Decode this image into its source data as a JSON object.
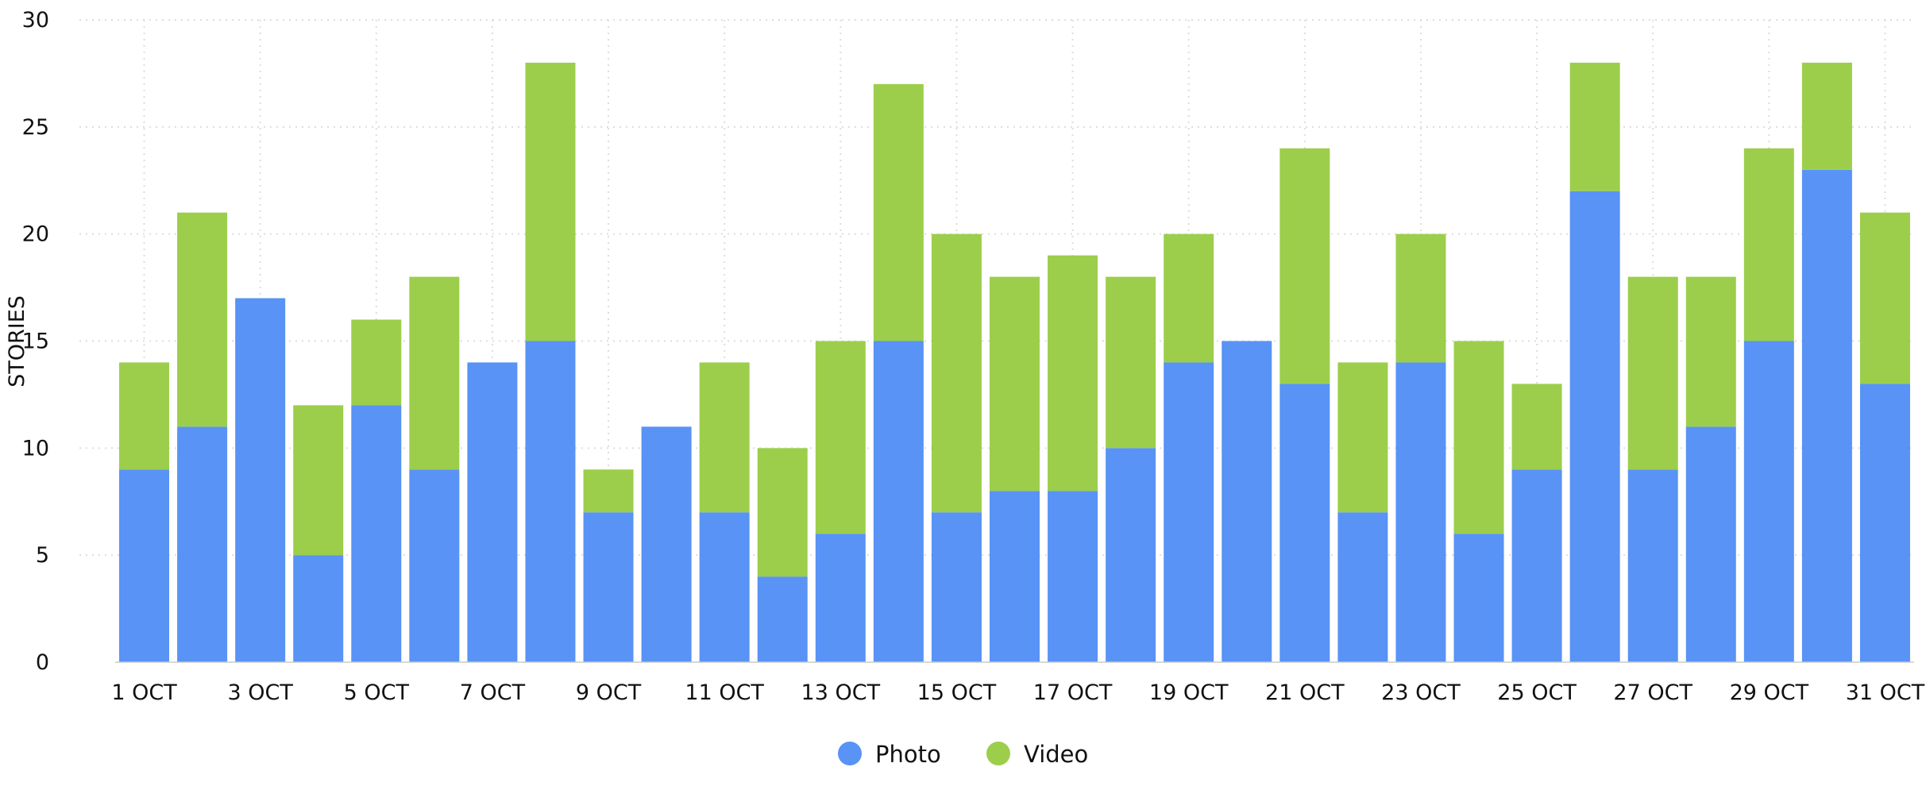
{
  "chart_data": {
    "type": "bar",
    "stacked": true,
    "title": "",
    "xlabel": "",
    "ylabel": "STORIES",
    "ylim": [
      0,
      30
    ],
    "yticks": [
      0,
      5,
      10,
      15,
      20,
      25,
      30
    ],
    "grid": true,
    "legend_position": "bottom",
    "categories": [
      "1 OCT",
      "2 OCT",
      "3 OCT",
      "4 OCT",
      "5 OCT",
      "6 OCT",
      "7 OCT",
      "8 OCT",
      "9 OCT",
      "10 OCT",
      "11 OCT",
      "12 OCT",
      "13 OCT",
      "14 OCT",
      "15 OCT",
      "16 OCT",
      "17 OCT",
      "18 OCT",
      "19 OCT",
      "20 OCT",
      "21 OCT",
      "22 OCT",
      "23 OCT",
      "24 OCT",
      "25 OCT",
      "26 OCT",
      "27 OCT",
      "28 OCT",
      "29 OCT",
      "30 OCT",
      "31 OCT"
    ],
    "xtick_labels": [
      "1 OCT",
      "3 OCT",
      "5 OCT",
      "7 OCT",
      "9 OCT",
      "11 OCT",
      "13 OCT",
      "15 OCT",
      "17 OCT",
      "19 OCT",
      "21 OCT",
      "23 OCT",
      "25 OCT",
      "27 OCT",
      "29 OCT",
      "31 OCT"
    ],
    "series": [
      {
        "name": "Photo",
        "color": "#5893F5",
        "values": [
          9,
          11,
          17,
          5,
          12,
          9,
          14,
          15,
          7,
          11,
          7,
          4,
          6,
          15,
          7,
          8,
          8,
          10,
          14,
          15,
          13,
          7,
          14,
          6,
          9,
          22,
          9,
          11,
          15,
          23,
          13
        ]
      },
      {
        "name": "Video",
        "color": "#9CCE4B",
        "values": [
          5,
          10,
          0,
          7,
          4,
          9,
          0,
          13,
          2,
          0,
          7,
          6,
          9,
          12,
          13,
          10,
          11,
          8,
          6,
          0,
          11,
          7,
          6,
          9,
          4,
          6,
          9,
          7,
          9,
          5,
          8
        ]
      }
    ]
  }
}
